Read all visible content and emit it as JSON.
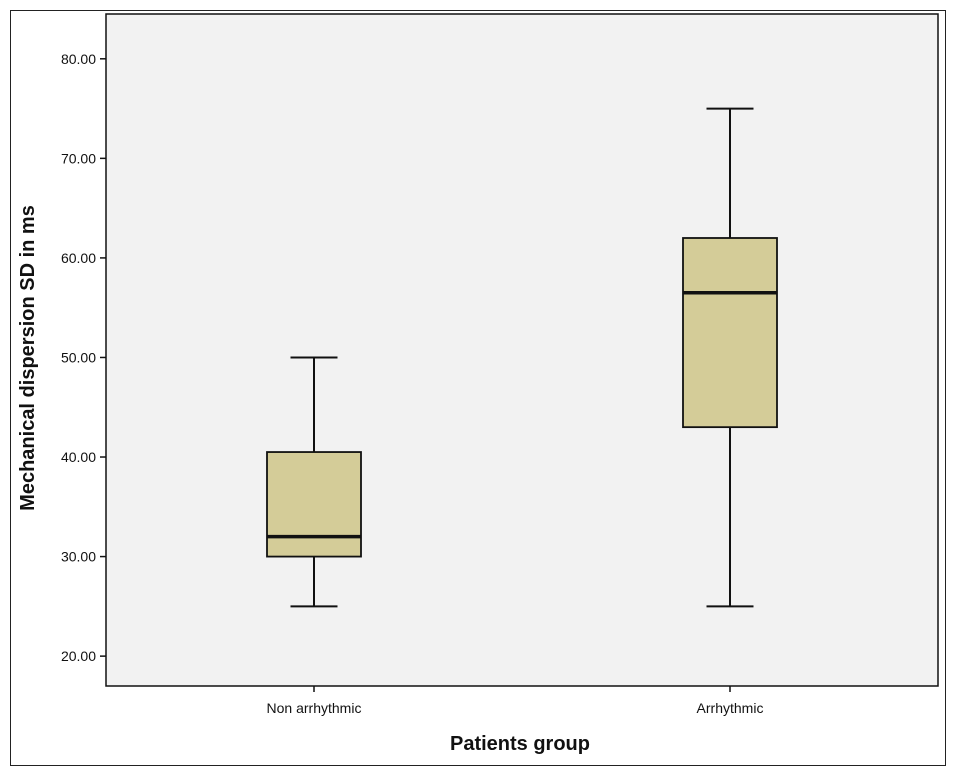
{
  "chart_data": {
    "type": "box",
    "title": "",
    "xlabel": "Patients group",
    "ylabel": "Mechanical dispersion SD in ms",
    "ylim": [
      17.0,
      84.5
    ],
    "yticks": [
      20,
      30,
      40,
      50,
      60,
      70,
      80
    ],
    "ytick_labels": [
      "20.00",
      "30.00",
      "40.00",
      "50.00",
      "60.00",
      "70.00",
      "80.00"
    ],
    "grid": false,
    "categories": [
      "Non arrhythmic",
      "Arrhythmic"
    ],
    "boxes": [
      {
        "category": "Non arrhythmic",
        "min": 25,
        "q1": 30,
        "median": 32,
        "q3": 40.5,
        "max": 50
      },
      {
        "category": "Arrhythmic",
        "min": 25,
        "q1": 43,
        "median": 56.5,
        "q3": 62,
        "max": 75
      }
    ],
    "colors": {
      "plot_background": "#f2f2f2",
      "box_fill": "#d4cc98",
      "stroke": "#111111"
    }
  }
}
